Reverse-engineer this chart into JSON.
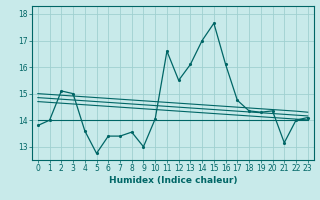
{
  "title": "",
  "xlabel": "Humidex (Indice chaleur)",
  "ylabel": "",
  "bg_color": "#c8eaea",
  "grid_color": "#a0d0d0",
  "line_color": "#006666",
  "x_values": [
    0,
    1,
    2,
    3,
    4,
    5,
    6,
    7,
    8,
    9,
    10,
    11,
    12,
    13,
    14,
    15,
    16,
    17,
    18,
    19,
    20,
    21,
    22,
    23
  ],
  "y_main": [
    13.8,
    14.0,
    15.1,
    15.0,
    13.6,
    12.75,
    13.4,
    13.4,
    13.55,
    13.0,
    14.05,
    16.6,
    15.5,
    16.1,
    17.0,
    17.65,
    16.1,
    14.75,
    14.35,
    14.3,
    14.35,
    13.15,
    14.0,
    14.1
  ],
  "y_trend1": [
    15.0,
    14.97,
    14.94,
    14.91,
    14.88,
    14.85,
    14.82,
    14.79,
    14.76,
    14.73,
    14.7,
    14.67,
    14.64,
    14.61,
    14.58,
    14.55,
    14.52,
    14.49,
    14.46,
    14.43,
    14.4,
    14.37,
    14.34,
    14.3
  ],
  "y_trend2": [
    14.85,
    14.82,
    14.79,
    14.76,
    14.73,
    14.7,
    14.67,
    14.64,
    14.61,
    14.58,
    14.55,
    14.52,
    14.49,
    14.46,
    14.43,
    14.4,
    14.37,
    14.34,
    14.31,
    14.28,
    14.25,
    14.22,
    14.19,
    14.16
  ],
  "y_trend3": [
    14.7,
    14.67,
    14.64,
    14.61,
    14.58,
    14.55,
    14.52,
    14.49,
    14.46,
    14.43,
    14.4,
    14.37,
    14.34,
    14.31,
    14.28,
    14.25,
    14.22,
    14.19,
    14.16,
    14.13,
    14.1,
    14.07,
    14.04,
    14.01
  ],
  "y_flat": [
    14.0,
    14.0,
    14.0,
    14.0,
    14.0,
    14.0,
    14.0,
    14.0,
    14.0,
    14.0,
    14.0,
    14.0,
    14.0,
    14.0,
    14.0,
    14.0,
    14.0,
    14.0,
    14.0,
    14.0,
    14.0,
    14.0,
    14.0,
    14.0
  ],
  "ylim": [
    12.5,
    18.3
  ],
  "xlim": [
    -0.5,
    23.5
  ],
  "xtick_labels": [
    "0",
    "1",
    "2",
    "3",
    "4",
    "5",
    "6",
    "7",
    "8",
    "9",
    "10",
    "11",
    "12",
    "13",
    "14",
    "15",
    "16",
    "17",
    "18",
    "19",
    "20",
    "21",
    "22",
    "23"
  ],
  "ytick_values": [
    13,
    14,
    15,
    16,
    17,
    18
  ],
  "label_fontsize": 6.5,
  "tick_fontsize": 5.5
}
